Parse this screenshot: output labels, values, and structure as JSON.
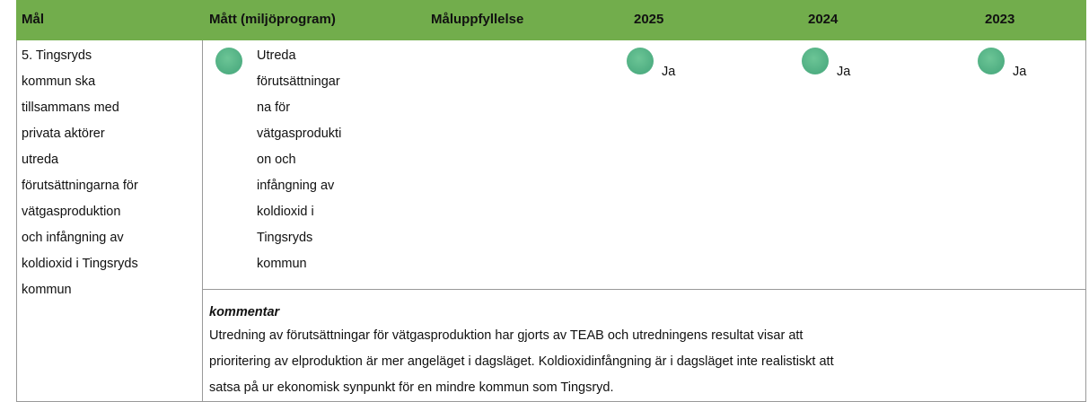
{
  "table": {
    "headers": [
      "Mål",
      "Mått (miljöprogram)",
      "Måluppfyllelse",
      "2025",
      "2024",
      "2023"
    ],
    "goal_lines": [
      "5. Tingsryds",
      "kommun ska",
      "tillsammans med",
      "privata aktörer",
      "utreda",
      "förutsättningarna för",
      "vätgasproduktion",
      "och infångning av",
      "koldioxid i Tingsryds",
      "kommun"
    ],
    "measure_lines": [
      "Utreda",
      "förutsättningar",
      "na för",
      "vätgasprodukti",
      "on och",
      "infångning av",
      "koldioxid i",
      "Tingsryds",
      "kommun"
    ],
    "years": [
      "Ja",
      "Ja",
      "Ja"
    ],
    "comment_title": "kommentar",
    "comment_lines": [
      "Utredning av förutsättningar för vätgasproduktion har gjorts av TEAB och utredningens resultat visar att",
      "prioritering av elproduktion är mer angeläget i dagsläget. Koldioxidinfångning är i dagsläget inte realistiskt att",
      "satsa på ur ekonomisk synpunkt för en mindre kommun som Tingsryd."
    ]
  }
}
